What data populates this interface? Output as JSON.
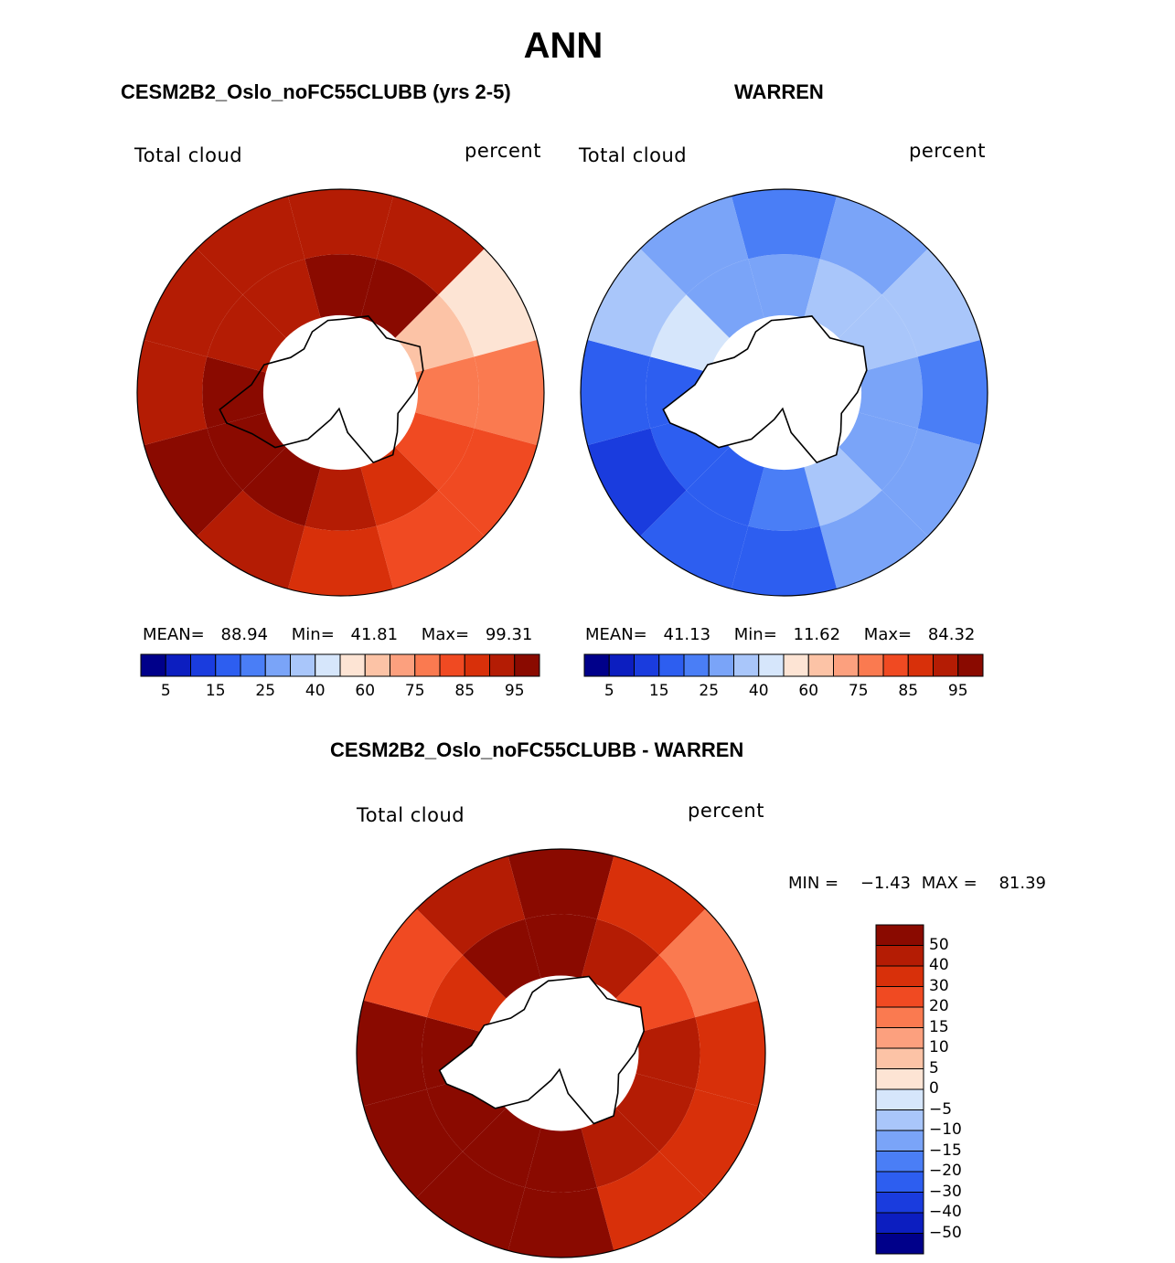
{
  "figure": {
    "title": "ANN",
    "field": "Total cloud",
    "units": "percent",
    "colors": {
      "levels": [
        "#00008a",
        "#0c1ec0",
        "#1a3cde",
        "#2d5ef0",
        "#4a7ef6",
        "#7aa4f8",
        "#a9c6fa",
        "#d6e6fb",
        "#fde4d4",
        "#fcc3a6",
        "#fca07e",
        "#fa7a50",
        "#f04a22",
        "#d8300a",
        "#b41c04",
        "#8a0a00"
      ],
      "continent": "#ffffff",
      "outline": "#000000"
    }
  },
  "chart_data": [
    {
      "type": "heatmap",
      "projection": "south-polar-stereographic",
      "title": "CESM2B2_Oslo_noFC55CLUBB (yrs 2-5)",
      "left_label": "Total cloud",
      "right_label": "percent",
      "stats": {
        "mean_label": "MEAN=",
        "mean": "88.94",
        "min_label": "Min=",
        "min": "41.81",
        "max_label": "Max=",
        "max": "99.31"
      },
      "colorbar_ticks": [
        "5",
        "15",
        "25",
        "40",
        "60",
        "75",
        "85",
        "95"
      ],
      "field_sectors": [
        {
          "lon": 0,
          "lat": -55,
          "value": 96
        },
        {
          "lon": 30,
          "lat": -55,
          "value": 97
        },
        {
          "lon": 60,
          "lat": -60,
          "value": 70
        },
        {
          "lon": 90,
          "lat": -55,
          "value": 85
        },
        {
          "lon": 120,
          "lat": -60,
          "value": 88
        },
        {
          "lon": 150,
          "lat": -60,
          "value": 90
        },
        {
          "lon": 180,
          "lat": -55,
          "value": 92
        },
        {
          "lon": 210,
          "lat": -60,
          "value": 97
        },
        {
          "lon": 240,
          "lat": -60,
          "value": 98
        },
        {
          "lon": 270,
          "lat": -60,
          "value": 97
        },
        {
          "lon": 300,
          "lat": -55,
          "value": 93
        },
        {
          "lon": 330,
          "lat": -55,
          "value": 95
        }
      ]
    },
    {
      "type": "heatmap",
      "projection": "south-polar-stereographic",
      "title": "WARREN",
      "left_label": "Total cloud",
      "right_label": "percent",
      "stats": {
        "mean_label": "MEAN=",
        "mean": "41.13",
        "min_label": "Min=",
        "min": "11.62",
        "max_label": "Max=",
        "max": "84.32"
      },
      "colorbar_ticks": [
        "5",
        "15",
        "25",
        "40",
        "60",
        "75",
        "85",
        "95"
      ],
      "field_sectors": [
        {
          "lon": 0,
          "lat": -55,
          "value": 35
        },
        {
          "lon": 30,
          "lat": -55,
          "value": 45
        },
        {
          "lon": 60,
          "lat": -60,
          "value": 50
        },
        {
          "lon": 90,
          "lat": -55,
          "value": 35
        },
        {
          "lon": 120,
          "lat": -60,
          "value": 40
        },
        {
          "lon": 150,
          "lat": -60,
          "value": 45
        },
        {
          "lon": 180,
          "lat": -55,
          "value": 30
        },
        {
          "lon": 210,
          "lat": -60,
          "value": 25
        },
        {
          "lon": 240,
          "lat": -60,
          "value": 20
        },
        {
          "lon": 270,
          "lat": -60,
          "value": 22
        },
        {
          "lon": 300,
          "lat": -55,
          "value": 55
        },
        {
          "lon": 330,
          "lat": -55,
          "value": 38
        }
      ]
    },
    {
      "type": "heatmap",
      "projection": "south-polar-stereographic",
      "title": "CESM2B2_Oslo_noFC55CLUBB - WARREN",
      "left_label": "Total cloud",
      "right_label": "percent",
      "stats": {
        "min_label": "MIN =",
        "min": "−1.43",
        "max_label": "MAX =",
        "max": "81.39"
      },
      "colorbar_ticks": [
        "50",
        "40",
        "30",
        "20",
        "15",
        "10",
        "5",
        "0",
        "−5",
        "−10",
        "−15",
        "−20",
        "−30",
        "−40",
        "−50"
      ],
      "field_sectors": [
        {
          "lon": 0,
          "lat": -55,
          "value": 60
        },
        {
          "lon": 30,
          "lat": -55,
          "value": 40
        },
        {
          "lon": 60,
          "lat": -60,
          "value": 20
        },
        {
          "lon": 90,
          "lat": -55,
          "value": 45
        },
        {
          "lon": 120,
          "lat": -60,
          "value": 45
        },
        {
          "lon": 150,
          "lat": -60,
          "value": 40
        },
        {
          "lon": 180,
          "lat": -55,
          "value": 60
        },
        {
          "lon": 210,
          "lat": -60,
          "value": 70
        },
        {
          "lon": 240,
          "lat": -60,
          "value": 75
        },
        {
          "lon": 270,
          "lat": -60,
          "value": 75
        },
        {
          "lon": 300,
          "lat": -55,
          "value": 35
        },
        {
          "lon": 330,
          "lat": -55,
          "value": 55
        }
      ]
    }
  ]
}
